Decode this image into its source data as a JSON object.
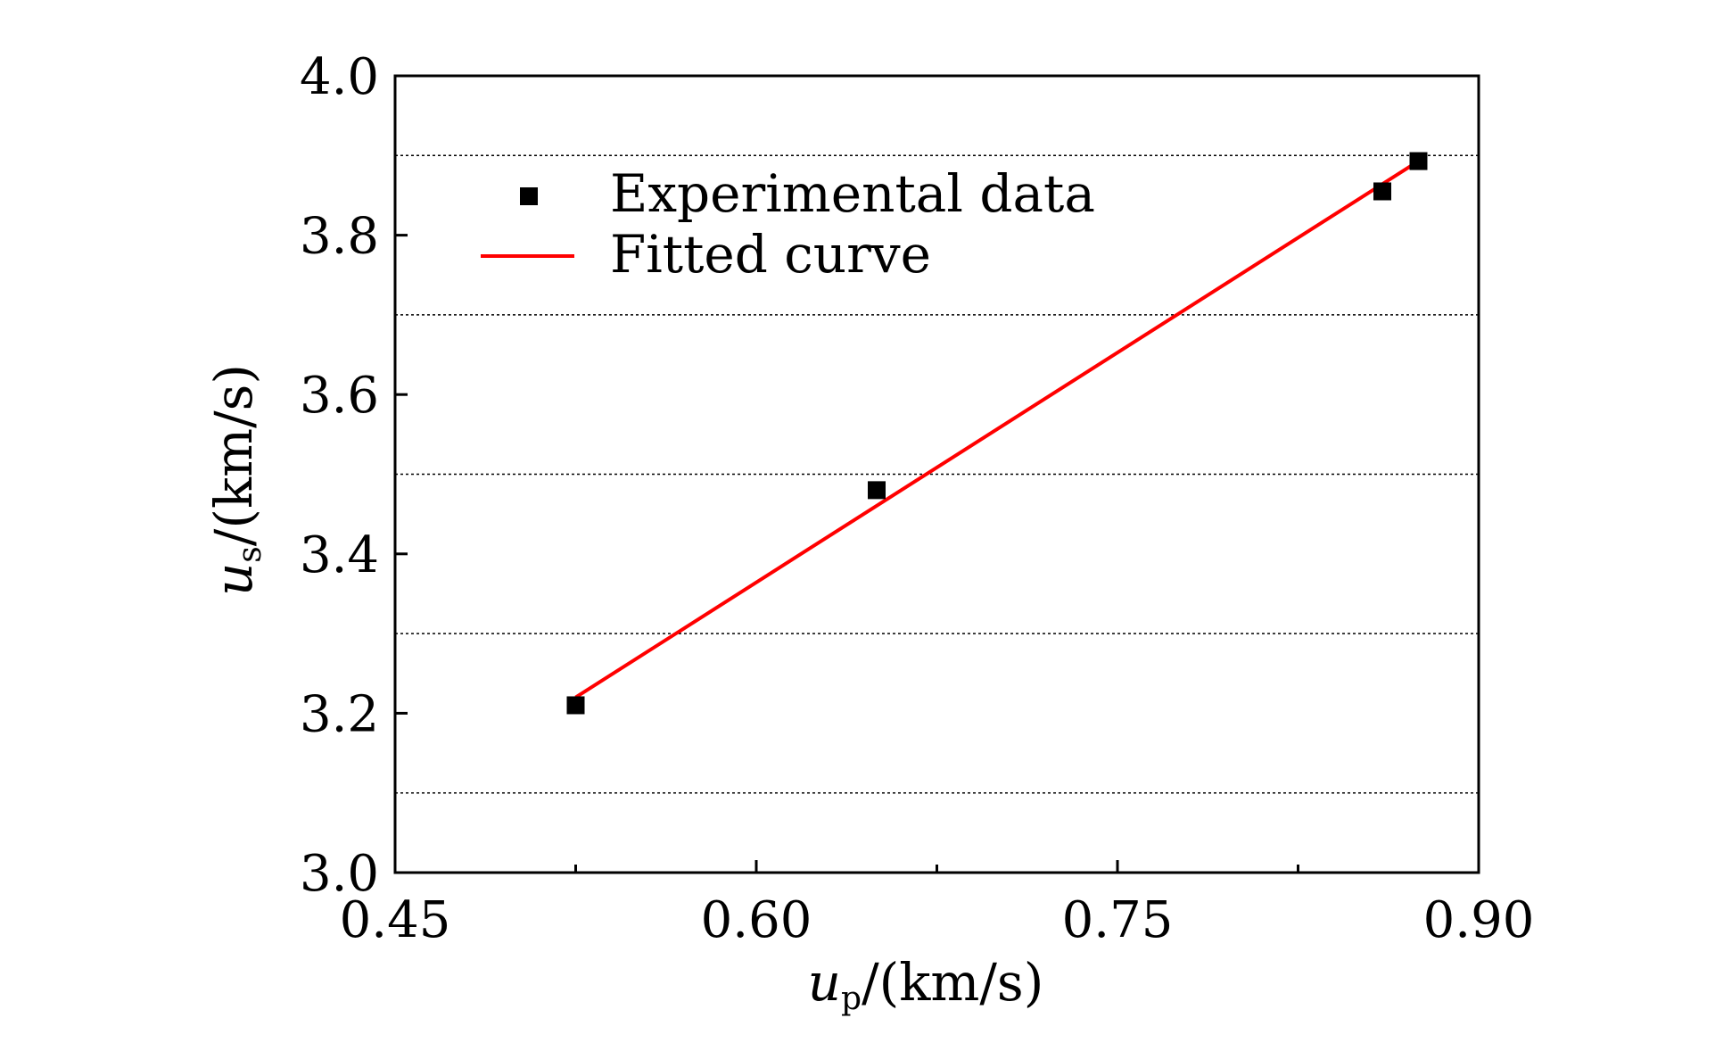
{
  "chart_data": {
    "type": "scatter",
    "title": "",
    "xlabel": {
      "symbol": "u",
      "subscript": "p",
      "unit": "/(km/s)"
    },
    "ylabel": {
      "symbol": "u",
      "subscript": "s",
      "unit": "/(km/s)"
    },
    "xlim": [
      0.45,
      0.9
    ],
    "ylim": [
      3.0,
      4.0
    ],
    "xticks": [
      0.45,
      0.6,
      0.75,
      0.9
    ],
    "xtick_labels": [
      "0.45",
      "0.60",
      "0.75",
      "0.90"
    ],
    "yticks": [
      3.0,
      3.2,
      3.4,
      3.6,
      3.8,
      4.0
    ],
    "ytick_labels": [
      "3.0",
      "3.2",
      "3.4",
      "3.6",
      "3.8",
      "4.0"
    ],
    "x_minor_ticks": [
      0.525,
      0.675,
      0.825
    ],
    "gridlines_y": [
      3.1,
      3.3,
      3.5,
      3.7,
      3.9
    ],
    "series": [
      {
        "name": "Experimental data",
        "kind": "scatter",
        "marker": "square",
        "color": "#000000",
        "x": [
          0.525,
          0.65,
          0.86,
          0.875
        ],
        "y": [
          3.21,
          3.48,
          3.855,
          3.893
        ]
      },
      {
        "name": "Fitted curve",
        "kind": "line",
        "color": "#ff0000",
        "x": [
          0.525,
          0.875
        ],
        "y": [
          3.22,
          3.893
        ]
      }
    ],
    "legend": {
      "position": "top-left"
    }
  }
}
